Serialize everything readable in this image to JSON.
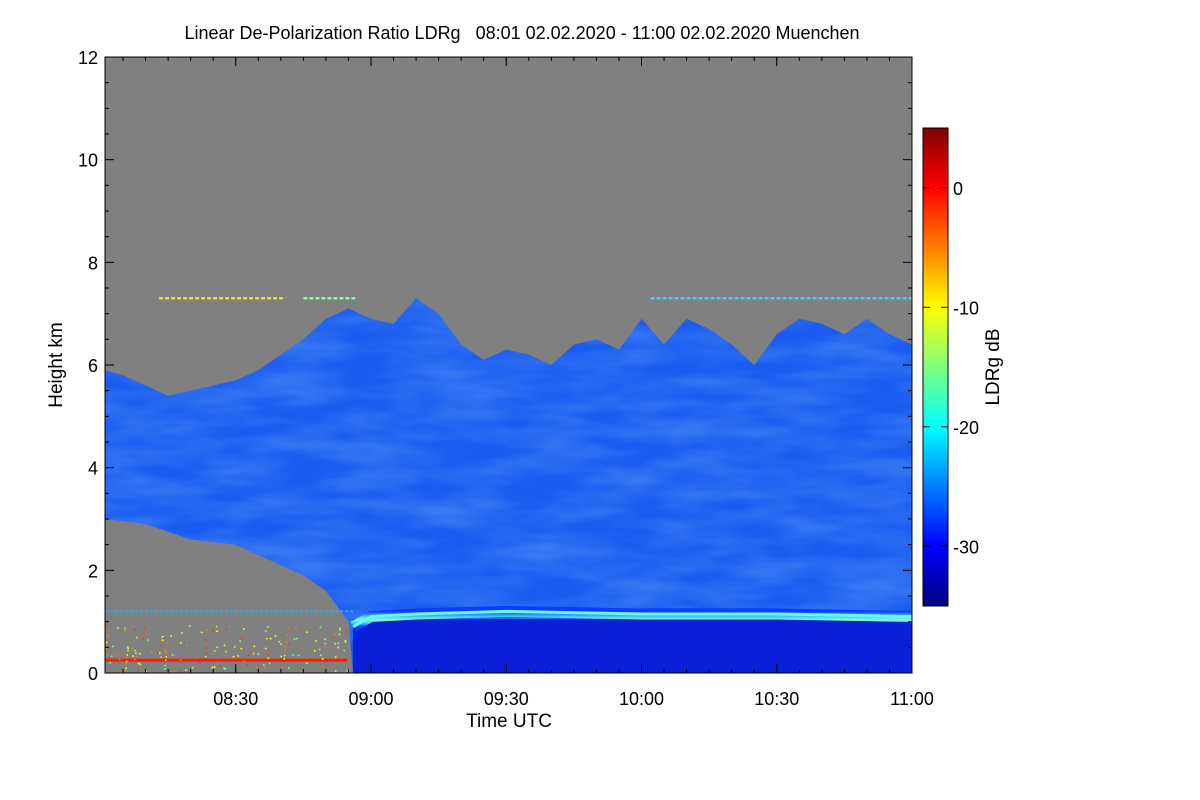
{
  "chart_data": {
    "type": "heatmap",
    "title": "Linear De-Polarization Ratio LDRg   08:01 02.02.2020 - 11:00 02.02.2020 Muenchen",
    "xlabel": "Time UTC",
    "ylabel": "Height km",
    "x_range_utc": [
      "08:01",
      "11:00"
    ],
    "x_ticks": [
      "08:30",
      "09:00",
      "09:30",
      "10:00",
      "10:30",
      "11:00"
    ],
    "ylim": [
      0,
      12
    ],
    "y_ticks": [
      0,
      2,
      4,
      6,
      8,
      10,
      12
    ],
    "colorbar": {
      "label": "LDRg dB",
      "range": [
        -35,
        5
      ],
      "ticks": [
        0,
        -10,
        -20,
        -30
      ],
      "colormap": "jet",
      "colors": [
        "#00007f",
        "#0000ff",
        "#007fff",
        "#00ffff",
        "#7fff7f",
        "#ffff00",
        "#ff7f00",
        "#ff0000",
        "#7f0000"
      ]
    },
    "no_signal_color": "#808080",
    "cloud_top_km": [
      [
        "08:01",
        5.9
      ],
      [
        "08:05",
        5.8
      ],
      [
        "08:10",
        5.6
      ],
      [
        "08:15",
        5.4
      ],
      [
        "08:20",
        5.5
      ],
      [
        "08:25",
        5.6
      ],
      [
        "08:30",
        5.7
      ],
      [
        "08:35",
        5.9
      ],
      [
        "08:40",
        6.2
      ],
      [
        "08:45",
        6.5
      ],
      [
        "08:50",
        6.9
      ],
      [
        "08:55",
        7.1
      ],
      [
        "09:00",
        6.9
      ],
      [
        "09:05",
        6.8
      ],
      [
        "09:10",
        7.3
      ],
      [
        "09:15",
        7.0
      ],
      [
        "09:20",
        6.4
      ],
      [
        "09:25",
        6.1
      ],
      [
        "09:30",
        6.3
      ],
      [
        "09:35",
        6.2
      ],
      [
        "09:40",
        6.0
      ],
      [
        "09:45",
        6.4
      ],
      [
        "09:50",
        6.5
      ],
      [
        "09:55",
        6.3
      ],
      [
        "10:00",
        6.9
      ],
      [
        "10:05",
        6.4
      ],
      [
        "10:10",
        6.9
      ],
      [
        "10:15",
        6.7
      ],
      [
        "10:20",
        6.4
      ],
      [
        "10:25",
        6.0
      ],
      [
        "10:30",
        6.6
      ],
      [
        "10:35",
        6.9
      ],
      [
        "10:40",
        6.8
      ],
      [
        "10:45",
        6.6
      ],
      [
        "10:50",
        6.9
      ],
      [
        "10:55",
        6.6
      ],
      [
        "11:00",
        6.4
      ]
    ],
    "cloud_base_km": [
      [
        "08:01",
        3.0
      ],
      [
        "08:10",
        2.9
      ],
      [
        "08:20",
        2.6
      ],
      [
        "08:30",
        2.5
      ],
      [
        "08:35",
        2.3
      ],
      [
        "08:40",
        2.1
      ],
      [
        "08:45",
        1.9
      ],
      [
        "08:50",
        1.6
      ],
      [
        "08:55",
        1.0
      ],
      [
        "08:56",
        0.0
      ],
      [
        "11:00",
        0.0
      ]
    ],
    "melting_layer_km": [
      [
        "08:56",
        0.9
      ],
      [
        "09:00",
        1.1
      ],
      [
        "09:10",
        1.15
      ],
      [
        "09:30",
        1.2
      ],
      [
        "10:00",
        1.15
      ],
      [
        "10:30",
        1.15
      ],
      [
        "11:00",
        1.1
      ]
    ],
    "overlap_line_km": 1.2,
    "thin_layer_km": 7.3
  }
}
